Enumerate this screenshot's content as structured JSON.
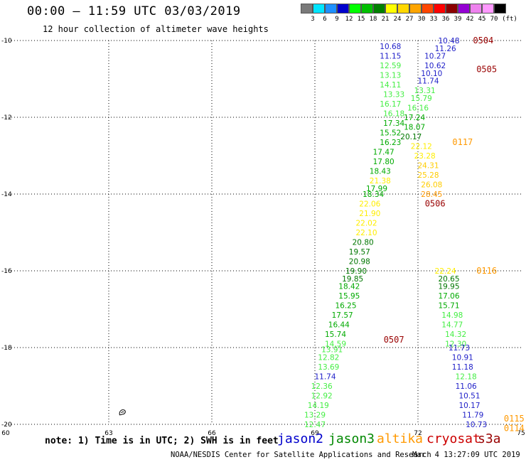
{
  "header": {
    "title": "00:00 – 11:59 UTC 03/03/2019",
    "subtitle": "12 hour collection of altimeter wave heights"
  },
  "color_scale": {
    "unit": "(ft)",
    "labels": [
      "3",
      "6",
      "9",
      "12",
      "15",
      "18",
      "21",
      "24",
      "27",
      "30",
      "33",
      "36",
      "39",
      "42",
      "45",
      "70"
    ],
    "colors": [
      "#7a7a7a",
      "#00e5ff",
      "#1e90ff",
      "#0000cd",
      "#00ff00",
      "#00c000",
      "#008000",
      "#ffff00",
      "#ffd700",
      "#ffa500",
      "#ff4500",
      "#ff0000",
      "#8b0000",
      "#9400d3",
      "#ee82ee",
      "#ff99ff",
      "#000000"
    ]
  },
  "footer": {
    "note": "note: 1) Time is in UTC; 2) SWH is in feet",
    "satellites": [
      {
        "name": "jason2",
        "color": "#0000cc"
      },
      {
        "name": "jason3",
        "color": "#008800"
      },
      {
        "name": "altika",
        "color": "#ff9900"
      },
      {
        "name": "cryosat",
        "color": "#cc0000"
      },
      {
        "name": "s3a",
        "color": "#990000"
      }
    ],
    "credit": "NOAA/NESDIS Center for Satellite Applications and Research",
    "generated": "Mar  4 13:27:09 UTC 2019"
  },
  "chart_data": {
    "type": "scatter",
    "title": "00:00 – 11:59 UTC 03/03/2019",
    "subtitle": "12 hour collection of altimeter wave heights",
    "xlim": [
      60,
      75
    ],
    "ylim": [
      -20,
      -10
    ],
    "x_ticks": [
      "60",
      "63",
      "66",
      "69",
      "72",
      "75"
    ],
    "y_ticks": [
      "-10",
      "-12",
      "-14",
      "-16",
      "-18",
      "-20"
    ],
    "grid": true,
    "value_colors": {
      "c12": "#1e1ec8",
      "c15": "#44ee44",
      "c18": "#00aa00",
      "c21": "#007700",
      "c24": "#ffee00",
      "c27": "#ffcc00",
      "c30": "#ff9900"
    },
    "tracks": [
      {
        "name": "track_1",
        "points": [
          {
            "lon": 72.9,
            "lat": -10.0,
            "swh": "10.48",
            "c": "c12"
          },
          {
            "lon": 72.8,
            "lat": -10.2,
            "swh": "11.26",
            "c": "c12"
          },
          {
            "lon": 72.5,
            "lat": -10.4,
            "swh": "10.27",
            "c": "c12"
          },
          {
            "lon": 72.5,
            "lat": -10.65,
            "swh": "10.62",
            "c": "c12"
          },
          {
            "lon": 72.4,
            "lat": -10.85,
            "swh": "10.10",
            "c": "c12"
          },
          {
            "lon": 72.3,
            "lat": -11.05,
            "swh": "11.74",
            "c": "c12"
          },
          {
            "lon": 72.2,
            "lat": -11.3,
            "swh": "13.31",
            "c": "c15"
          },
          {
            "lon": 72.1,
            "lat": -11.5,
            "swh": "15.79",
            "c": "c15"
          },
          {
            "lon": 72.0,
            "lat": -11.75,
            "swh": "16.16",
            "c": "c15"
          },
          {
            "lon": 71.9,
            "lat": -12.0,
            "swh": "17.24",
            "c": "c18"
          },
          {
            "lon": 71.9,
            "lat": -12.25,
            "swh": "18.07",
            "c": "c18"
          },
          {
            "lon": 71.8,
            "lat": -12.5,
            "swh": "20.17",
            "c": "c21"
          },
          {
            "lon": 72.1,
            "lat": -12.75,
            "swh": "22.12",
            "c": "c24"
          },
          {
            "lon": 72.2,
            "lat": -13.0,
            "swh": "23.28",
            "c": "c24"
          },
          {
            "lon": 72.3,
            "lat": -13.25,
            "swh": "24.31",
            "c": "c27"
          },
          {
            "lon": 72.3,
            "lat": -13.5,
            "swh": "25.28",
            "c": "c27"
          },
          {
            "lon": 72.4,
            "lat": -13.75,
            "swh": "26.08",
            "c": "c27"
          },
          {
            "lon": 72.4,
            "lat": -14.0,
            "swh": "28.45",
            "c": "c30"
          }
        ]
      },
      {
        "name": "track_2",
        "points": [
          {
            "lon": 71.2,
            "lat": -10.15,
            "swh": "10.68",
            "c": "c12"
          },
          {
            "lon": 71.2,
            "lat": -10.4,
            "swh": "11.15",
            "c": "c12"
          },
          {
            "lon": 71.2,
            "lat": -10.65,
            "swh": "12.59",
            "c": "c15"
          },
          {
            "lon": 71.2,
            "lat": -10.9,
            "swh": "13.13",
            "c": "c15"
          },
          {
            "lon": 71.2,
            "lat": -11.15,
            "swh": "14.11",
            "c": "c15"
          },
          {
            "lon": 71.3,
            "lat": -11.4,
            "swh": "13.33",
            "c": "c15"
          },
          {
            "lon": 71.2,
            "lat": -11.65,
            "swh": "16.17",
            "c": "c15"
          },
          {
            "lon": 71.3,
            "lat": -11.9,
            "swh": "16.18",
            "c": "c15"
          },
          {
            "lon": 71.3,
            "lat": -12.15,
            "swh": "17.34",
            "c": "c18"
          },
          {
            "lon": 71.2,
            "lat": -12.4,
            "swh": "15.52",
            "c": "c18"
          },
          {
            "lon": 71.2,
            "lat": -12.65,
            "swh": "16.23",
            "c": "c18"
          },
          {
            "lon": 71.0,
            "lat": -12.9,
            "swh": "17.47",
            "c": "c18"
          },
          {
            "lon": 71.0,
            "lat": -13.15,
            "swh": "17.80",
            "c": "c18"
          },
          {
            "lon": 70.9,
            "lat": -13.4,
            "swh": "18.43",
            "c": "c18"
          },
          {
            "lon": 70.9,
            "lat": -13.65,
            "swh": "21.38",
            "c": "c24"
          },
          {
            "lon": 70.8,
            "lat": -13.85,
            "swh": "17.99",
            "c": "c18"
          },
          {
            "lon": 70.7,
            "lat": -14.0,
            "swh": "18.34",
            "c": "c18"
          },
          {
            "lon": 70.6,
            "lat": -14.25,
            "swh": "22.06",
            "c": "c24"
          },
          {
            "lon": 70.6,
            "lat": -14.5,
            "swh": "21.90",
            "c": "c24"
          },
          {
            "lon": 70.5,
            "lat": -14.75,
            "swh": "22.02",
            "c": "c24"
          },
          {
            "lon": 70.5,
            "lat": -15.0,
            "swh": "22.10",
            "c": "c24"
          },
          {
            "lon": 70.4,
            "lat": -15.25,
            "swh": "20.80",
            "c": "c21"
          },
          {
            "lon": 70.3,
            "lat": -15.5,
            "swh": "19.57",
            "c": "c21"
          },
          {
            "lon": 70.3,
            "lat": -15.75,
            "swh": "20.98",
            "c": "c21"
          },
          {
            "lon": 70.2,
            "lat": -16.0,
            "swh": "19.90",
            "c": "c21"
          },
          {
            "lon": 70.1,
            "lat": -16.2,
            "swh": "19.85",
            "c": "c21"
          },
          {
            "lon": 70.0,
            "lat": -16.4,
            "swh": "18.42",
            "c": "c18"
          },
          {
            "lon": 70.0,
            "lat": -16.65,
            "swh": "15.95",
            "c": "c18"
          },
          {
            "lon": 69.9,
            "lat": -16.9,
            "swh": "16.25",
            "c": "c18"
          },
          {
            "lon": 69.8,
            "lat": -17.15,
            "swh": "17.57",
            "c": "c18"
          },
          {
            "lon": 69.7,
            "lat": -17.4,
            "swh": "16.44",
            "c": "c18"
          },
          {
            "lon": 69.6,
            "lat": -17.65,
            "swh": "15.74",
            "c": "c18"
          },
          {
            "lon": 69.6,
            "lat": -17.9,
            "swh": "14.59",
            "c": "c15"
          },
          {
            "lon": 69.5,
            "lat": -18.05,
            "swh": "13.91",
            "c": "c15"
          },
          {
            "lon": 69.4,
            "lat": -18.25,
            "swh": "12.82",
            "c": "c15"
          },
          {
            "lon": 69.4,
            "lat": -18.5,
            "swh": "13.69",
            "c": "c15"
          },
          {
            "lon": 69.3,
            "lat": -18.75,
            "swh": "11.74",
            "c": "c12"
          },
          {
            "lon": 69.2,
            "lat": -19.0,
            "swh": "12.36",
            "c": "c15"
          },
          {
            "lon": 69.2,
            "lat": -19.25,
            "swh": "12.92",
            "c": "c15"
          },
          {
            "lon": 69.1,
            "lat": -19.5,
            "swh": "14.19",
            "c": "c15"
          },
          {
            "lon": 69.0,
            "lat": -19.75,
            "swh": "13.29",
            "c": "c15"
          },
          {
            "lon": 69.0,
            "lat": -20.0,
            "swh": "12.47",
            "c": "c15"
          }
        ]
      },
      {
        "name": "track_3",
        "points": [
          {
            "lon": 72.8,
            "lat": -16.0,
            "swh": "22.24",
            "c": "c24"
          },
          {
            "lon": 72.9,
            "lat": -16.2,
            "swh": "20.65",
            "c": "c21"
          },
          {
            "lon": 72.9,
            "lat": -16.4,
            "swh": "19.95",
            "c": "c21"
          },
          {
            "lon": 72.9,
            "lat": -16.65,
            "swh": "17.06",
            "c": "c18"
          },
          {
            "lon": 72.9,
            "lat": -16.9,
            "swh": "15.71",
            "c": "c18"
          },
          {
            "lon": 73.0,
            "lat": -17.15,
            "swh": "14.98",
            "c": "c15"
          },
          {
            "lon": 73.0,
            "lat": -17.4,
            "swh": "14.77",
            "c": "c15"
          },
          {
            "lon": 73.1,
            "lat": -17.65,
            "swh": "14.32",
            "c": "c15"
          },
          {
            "lon": 73.1,
            "lat": -17.9,
            "swh": "12.30",
            "c": "c15"
          },
          {
            "lon": 73.2,
            "lat": -18.0,
            "swh": "11.73",
            "c": "c12"
          },
          {
            "lon": 73.3,
            "lat": -18.25,
            "swh": "10.91",
            "c": "c12"
          },
          {
            "lon": 73.3,
            "lat": -18.5,
            "swh": "11.18",
            "c": "c12"
          },
          {
            "lon": 73.4,
            "lat": -18.75,
            "swh": "12.18",
            "c": "c15"
          },
          {
            "lon": 73.4,
            "lat": -19.0,
            "swh": "11.06",
            "c": "c12"
          },
          {
            "lon": 73.5,
            "lat": -19.25,
            "swh": "10.51",
            "c": "c12"
          },
          {
            "lon": 73.5,
            "lat": -19.5,
            "swh": "10.17",
            "c": "c12"
          },
          {
            "lon": 73.6,
            "lat": -19.75,
            "swh": "11.79",
            "c": "c12"
          },
          {
            "lon": 73.7,
            "lat": -20.0,
            "swh": "10.73",
            "c": "c12"
          }
        ]
      }
    ],
    "time_annotations": [
      {
        "text": "0504",
        "lon": 73.9,
        "lat": -10.0,
        "color": "#990000"
      },
      {
        "text": "0505",
        "lon": 74.0,
        "lat": -10.75,
        "color": "#990000"
      },
      {
        "text": "0117",
        "lon": 73.3,
        "lat": -12.65,
        "color": "#ff9900"
      },
      {
        "text": "0506",
        "lon": 72.5,
        "lat": -14.25,
        "color": "#990000"
      },
      {
        "text": "0116",
        "lon": 74.0,
        "lat": -16.0,
        "color": "#ff9900"
      },
      {
        "text": "0507",
        "lon": 71.3,
        "lat": -17.8,
        "color": "#990000"
      },
      {
        "text": "0115",
        "lon": 74.8,
        "lat": -19.85,
        "color": "#ff9900"
      },
      {
        "text": "0114",
        "lon": 74.8,
        "lat": -20.1,
        "color": "#ff9900"
      }
    ],
    "landmass": [
      {
        "lon": 63.4,
        "lat": -19.7
      }
    ]
  }
}
